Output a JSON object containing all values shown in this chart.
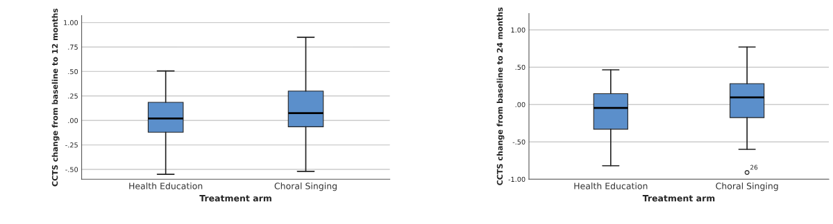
{
  "chart_data": [
    {
      "type": "box",
      "xlabel": "Treatment arm",
      "ylabel": "CCTS change from baseline to 12 months",
      "categories": [
        "Health Education",
        "Choral Singing"
      ],
      "color": "#5b8fcb",
      "boxes": [
        {
          "low": -0.55,
          "q1": -0.12,
          "median": 0.02,
          "q3": 0.185,
          "high": 0.505
        },
        {
          "low": -0.52,
          "q1": -0.065,
          "median": 0.075,
          "q3": 0.3,
          "high": 0.85
        }
      ],
      "ylim": [
        -0.6,
        1.07
      ],
      "yticks": [
        {
          "value": -0.5,
          "label": "-.50"
        },
        {
          "value": -0.25,
          "label": "-.25"
        },
        {
          "value": 0,
          "label": ".00"
        },
        {
          "value": 0.25,
          "label": ".25"
        },
        {
          "value": 0.5,
          "label": ".50"
        },
        {
          "value": 0.75,
          "label": ".75"
        },
        {
          "value": 1.0,
          "label": "1.00"
        }
      ],
      "grid": "y"
    },
    {
      "type": "box",
      "xlabel": "Treatment arm",
      "ylabel": "CCTS change from baseline to 24 months",
      "categories": [
        "Health Education",
        "Choral Singing"
      ],
      "color": "#5b8fcb",
      "boxes": [
        {
          "low": -0.82,
          "q1": -0.33,
          "median": -0.045,
          "q3": 0.145,
          "high": 0.465
        },
        {
          "low": -0.6,
          "q1": -0.175,
          "median": 0.095,
          "q3": 0.28,
          "high": 0.77,
          "outliers": [
            -0.91
          ]
        }
      ],
      "annotations": [
        "26"
      ],
      "ylim": [
        -1.0,
        1.22
      ],
      "yticks": [
        {
          "value": -1.0,
          "label": "-1.00"
        },
        {
          "value": -0.5,
          "label": "-.50"
        },
        {
          "value": 0,
          "label": ".00"
        },
        {
          "value": 0.5,
          "label": ".50"
        },
        {
          "value": 1.0,
          "label": "1.00"
        }
      ],
      "grid": "y"
    }
  ]
}
